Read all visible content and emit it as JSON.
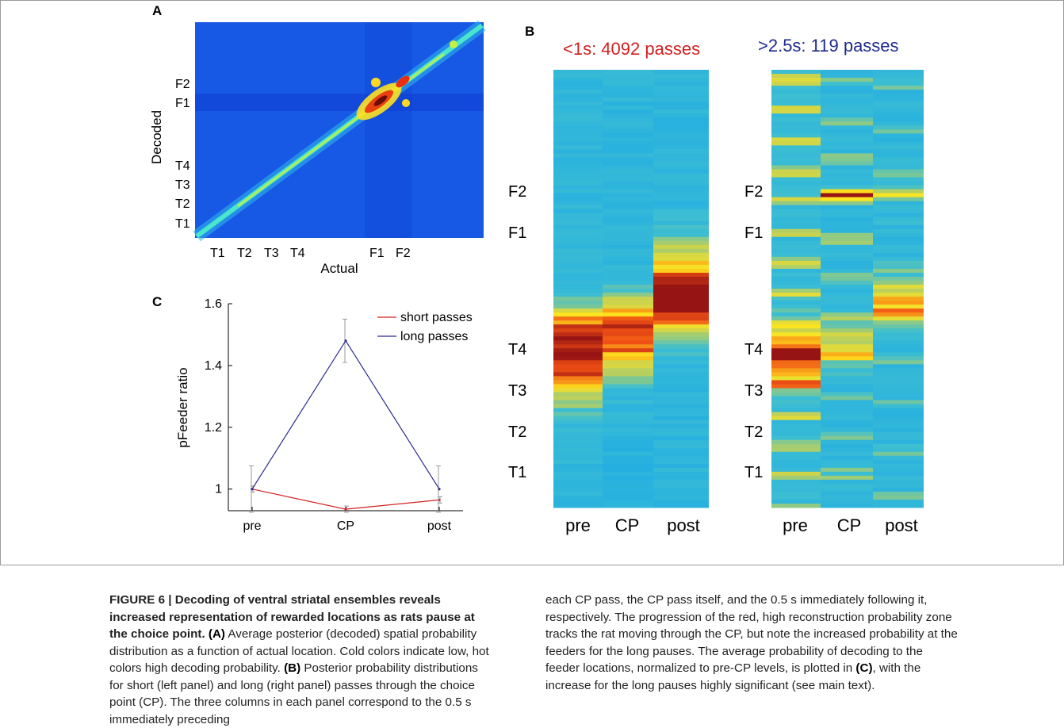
{
  "panel_labels": {
    "a": "A",
    "b": "B",
    "c": "C"
  },
  "panel_a": {
    "xlabel": "Actual",
    "ylabel": "Decoded",
    "x_ticks": [
      "T1",
      "T2",
      "T3",
      "T4",
      "F1",
      "F2"
    ],
    "y_ticks": [
      "F2",
      "F1",
      "T4",
      "T3",
      "T2",
      "T1"
    ]
  },
  "panel_b": {
    "left_title": "<1s: 4092 passes",
    "right_title": ">2.5s: 119 passes",
    "left_title_color": "#d42020",
    "right_title_color": "#1e2a8c",
    "y_ticks": [
      "F2",
      "F1",
      "T4",
      "T3",
      "T2",
      "T1"
    ],
    "columns": [
      "pre",
      "CP",
      "post"
    ]
  },
  "chart_data": {
    "type": "line",
    "categories": [
      "pre",
      "CP",
      "post"
    ],
    "series": [
      {
        "name": "short passes",
        "color": "#d42020",
        "values": [
          1.0,
          0.935,
          0.965
        ],
        "errors": [
          0.01,
          0.01,
          0.01
        ]
      },
      {
        "name": "long passes",
        "color": "#2a2a8f",
        "values": [
          1.0,
          1.48,
          1.0
        ],
        "errors": [
          0.075,
          0.07,
          0.075
        ]
      }
    ],
    "title": "",
    "xlabel": "",
    "ylabel": "pFeeder ratio",
    "ylim": [
      0.93,
      1.6
    ],
    "y_ticks": [
      1,
      1.2,
      1.4,
      1.6
    ],
    "y_tick_labels": [
      "1",
      "1.2",
      "1.4",
      "1.6"
    ],
    "legend": "top-right",
    "grid": false
  },
  "caption": {
    "title": "FIGURE 6 | Decoding of ventral striatal ensembles reveals increased representation of rewarded locations as rats pause at the choice point.",
    "a_ref": "(A)",
    "a_text": " Average posterior (decoded) spatial probability distribution as a function of actual location. Cold colors indicate low, hot colors high decoding probability. ",
    "b_ref": "(B)",
    "b_text": " Posterior probability distributions for short (left panel) and long (right panel) passes through the choice point (CP). The three columns in each panel correspond to the 0.5 s immediately preceding",
    "right_text_1": "each CP pass, the CP pass itself, and the 0.5 s immediately following it, respectively. The progression of the red, high reconstruction probability zone tracks the rat moving through the CP, but note the increased probability at the feeders for the long pauses. The average probability of decoding to the feeder locations, normalized to pre-CP levels, is plotted in ",
    "c_ref": "(C)",
    "right_text_2": ", with the increase for the long pauses highly significant (see main text)."
  }
}
